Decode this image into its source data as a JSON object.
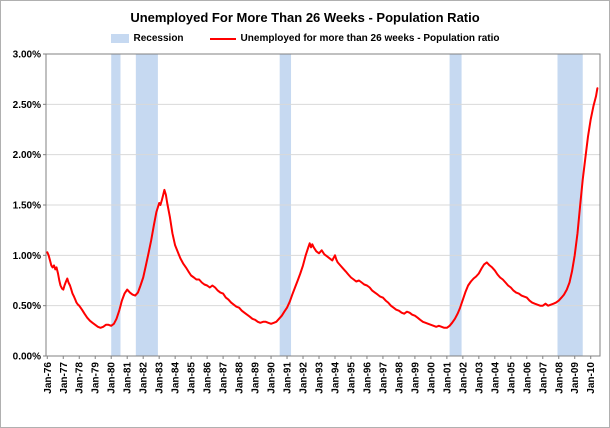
{
  "title": "Unemployed For More Than 26 Weeks - Population Ratio",
  "legend": {
    "recession_label": "Recession",
    "series_label": "Unemployed for more than 26 weeks - Population ratio"
  },
  "chart_data": {
    "type": "line",
    "title": "Unemployed For More Than 26 Weeks - Population Ratio",
    "xlabel": "",
    "ylabel": "",
    "ylim": [
      0,
      3.0
    ],
    "ytick_step": 0.5,
    "ytick_labels": [
      "0.00%",
      "0.50%",
      "1.00%",
      "1.50%",
      "2.00%",
      "2.50%",
      "3.00%"
    ],
    "xlim": [
      1975.92,
      2010.58
    ],
    "x_ticks_years": [
      1976,
      1977,
      1978,
      1979,
      1980,
      1981,
      1982,
      1983,
      1984,
      1985,
      1986,
      1987,
      1988,
      1989,
      1990,
      1991,
      1992,
      1993,
      1994,
      1995,
      1996,
      1997,
      1998,
      1999,
      2000,
      2001,
      2002,
      2003,
      2004,
      2005,
      2006,
      2007,
      2008,
      2009,
      2010
    ],
    "xtick_labels": [
      "Jan-76",
      "Jan-77",
      "Jan-78",
      "Jan-79",
      "Jan-80",
      "Jan-81",
      "Jan-82",
      "Jan-83",
      "Jan-84",
      "Jan-85",
      "Jan-86",
      "Jan-87",
      "Jan-88",
      "Jan-89",
      "Jan-90",
      "Jan-91",
      "Jan-92",
      "Jan-93",
      "Jan-94",
      "Jan-95",
      "Jan-96",
      "Jan-97",
      "Jan-98",
      "Jan-99",
      "Jan-00",
      "Jan-01",
      "Jan-02",
      "Jan-03",
      "Jan-04",
      "Jan-05",
      "Jan-06",
      "Jan-07",
      "Jan-08",
      "Jan-09",
      "Jan-10"
    ],
    "recessions": [
      [
        1980.0,
        1980.58
      ],
      [
        1981.54,
        1982.92
      ],
      [
        1990.54,
        1991.25
      ],
      [
        2001.17,
        2001.92
      ],
      [
        2007.92,
        2009.5
      ]
    ],
    "band_color": "#C6D9F1",
    "grid_color": "#D9D9D9",
    "axis_color": "#808080",
    "series": [
      {
        "name": "Unemployed for more than 26 weeks - Population ratio",
        "color": "#FF0000",
        "points": [
          [
            1976.0,
            1.03
          ],
          [
            1976.08,
            1.0
          ],
          [
            1976.17,
            0.95
          ],
          [
            1976.25,
            0.9
          ],
          [
            1976.33,
            0.88
          ],
          [
            1976.42,
            0.9
          ],
          [
            1976.5,
            0.86
          ],
          [
            1976.58,
            0.88
          ],
          [
            1976.67,
            0.82
          ],
          [
            1976.75,
            0.75
          ],
          [
            1976.83,
            0.7
          ],
          [
            1976.92,
            0.67
          ],
          [
            1977.0,
            0.66
          ],
          [
            1977.08,
            0.7
          ],
          [
            1977.17,
            0.74
          ],
          [
            1977.25,
            0.77
          ],
          [
            1977.33,
            0.73
          ],
          [
            1977.42,
            0.7
          ],
          [
            1977.5,
            0.66
          ],
          [
            1977.58,
            0.62
          ],
          [
            1977.67,
            0.59
          ],
          [
            1977.75,
            0.56
          ],
          [
            1977.83,
            0.53
          ],
          [
            1977.92,
            0.51
          ],
          [
            1978.0,
            0.5
          ],
          [
            1978.17,
            0.46
          ],
          [
            1978.33,
            0.42
          ],
          [
            1978.5,
            0.38
          ],
          [
            1978.67,
            0.35
          ],
          [
            1978.83,
            0.33
          ],
          [
            1979.0,
            0.31
          ],
          [
            1979.17,
            0.29
          ],
          [
            1979.33,
            0.28
          ],
          [
            1979.5,
            0.29
          ],
          [
            1979.67,
            0.31
          ],
          [
            1979.83,
            0.31
          ],
          [
            1980.0,
            0.3
          ],
          [
            1980.17,
            0.32
          ],
          [
            1980.33,
            0.37
          ],
          [
            1980.5,
            0.45
          ],
          [
            1980.67,
            0.55
          ],
          [
            1980.83,
            0.62
          ],
          [
            1981.0,
            0.66
          ],
          [
            1981.17,
            0.63
          ],
          [
            1981.33,
            0.61
          ],
          [
            1981.5,
            0.6
          ],
          [
            1981.67,
            0.63
          ],
          [
            1981.83,
            0.7
          ],
          [
            1982.0,
            0.78
          ],
          [
            1982.17,
            0.9
          ],
          [
            1982.33,
            1.02
          ],
          [
            1982.5,
            1.15
          ],
          [
            1982.67,
            1.3
          ],
          [
            1982.83,
            1.43
          ],
          [
            1983.0,
            1.52
          ],
          [
            1983.08,
            1.5
          ],
          [
            1983.17,
            1.55
          ],
          [
            1983.25,
            1.6
          ],
          [
            1983.33,
            1.65
          ],
          [
            1983.42,
            1.6
          ],
          [
            1983.5,
            1.52
          ],
          [
            1983.67,
            1.38
          ],
          [
            1983.83,
            1.22
          ],
          [
            1984.0,
            1.1
          ],
          [
            1984.17,
            1.03
          ],
          [
            1984.33,
            0.97
          ],
          [
            1984.5,
            0.92
          ],
          [
            1984.67,
            0.88
          ],
          [
            1984.83,
            0.84
          ],
          [
            1985.0,
            0.8
          ],
          [
            1985.17,
            0.78
          ],
          [
            1985.33,
            0.76
          ],
          [
            1985.5,
            0.76
          ],
          [
            1985.67,
            0.73
          ],
          [
            1985.83,
            0.71
          ],
          [
            1986.0,
            0.7
          ],
          [
            1986.17,
            0.68
          ],
          [
            1986.33,
            0.7
          ],
          [
            1986.5,
            0.68
          ],
          [
            1986.67,
            0.65
          ],
          [
            1986.83,
            0.63
          ],
          [
            1987.0,
            0.62
          ],
          [
            1987.17,
            0.58
          ],
          [
            1987.33,
            0.56
          ],
          [
            1987.5,
            0.53
          ],
          [
            1987.67,
            0.51
          ],
          [
            1987.83,
            0.49
          ],
          [
            1988.0,
            0.48
          ],
          [
            1988.17,
            0.45
          ],
          [
            1988.33,
            0.43
          ],
          [
            1988.5,
            0.41
          ],
          [
            1988.67,
            0.39
          ],
          [
            1988.83,
            0.37
          ],
          [
            1989.0,
            0.36
          ],
          [
            1989.17,
            0.34
          ],
          [
            1989.33,
            0.33
          ],
          [
            1989.5,
            0.34
          ],
          [
            1989.67,
            0.34
          ],
          [
            1989.83,
            0.33
          ],
          [
            1990.0,
            0.32
          ],
          [
            1990.17,
            0.33
          ],
          [
            1990.33,
            0.34
          ],
          [
            1990.5,
            0.37
          ],
          [
            1990.67,
            0.4
          ],
          [
            1990.83,
            0.44
          ],
          [
            1991.0,
            0.48
          ],
          [
            1991.17,
            0.54
          ],
          [
            1991.33,
            0.61
          ],
          [
            1991.5,
            0.68
          ],
          [
            1991.67,
            0.75
          ],
          [
            1991.83,
            0.82
          ],
          [
            1992.0,
            0.9
          ],
          [
            1992.17,
            1.0
          ],
          [
            1992.33,
            1.08
          ],
          [
            1992.42,
            1.12
          ],
          [
            1992.5,
            1.08
          ],
          [
            1992.58,
            1.11
          ],
          [
            1992.67,
            1.08
          ],
          [
            1992.83,
            1.04
          ],
          [
            1993.0,
            1.02
          ],
          [
            1993.17,
            1.05
          ],
          [
            1993.33,
            1.01
          ],
          [
            1993.5,
            0.99
          ],
          [
            1993.67,
            0.97
          ],
          [
            1993.83,
            0.95
          ],
          [
            1994.0,
            1.0
          ],
          [
            1994.08,
            0.96
          ],
          [
            1994.17,
            0.93
          ],
          [
            1994.33,
            0.9
          ],
          [
            1994.5,
            0.87
          ],
          [
            1994.67,
            0.84
          ],
          [
            1994.83,
            0.81
          ],
          [
            1995.0,
            0.78
          ],
          [
            1995.17,
            0.76
          ],
          [
            1995.33,
            0.74
          ],
          [
            1995.5,
            0.75
          ],
          [
            1995.67,
            0.73
          ],
          [
            1995.83,
            0.71
          ],
          [
            1996.0,
            0.7
          ],
          [
            1996.17,
            0.68
          ],
          [
            1996.33,
            0.65
          ],
          [
            1996.5,
            0.63
          ],
          [
            1996.67,
            0.61
          ],
          [
            1996.83,
            0.59
          ],
          [
            1997.0,
            0.58
          ],
          [
            1997.17,
            0.55
          ],
          [
            1997.33,
            0.53
          ],
          [
            1997.5,
            0.5
          ],
          [
            1997.67,
            0.48
          ],
          [
            1997.83,
            0.46
          ],
          [
            1998.0,
            0.45
          ],
          [
            1998.17,
            0.43
          ],
          [
            1998.33,
            0.42
          ],
          [
            1998.5,
            0.44
          ],
          [
            1998.67,
            0.43
          ],
          [
            1998.83,
            0.41
          ],
          [
            1999.0,
            0.4
          ],
          [
            1999.17,
            0.38
          ],
          [
            1999.33,
            0.36
          ],
          [
            1999.5,
            0.34
          ],
          [
            1999.67,
            0.33
          ],
          [
            1999.83,
            0.32
          ],
          [
            2000.0,
            0.31
          ],
          [
            2000.17,
            0.3
          ],
          [
            2000.33,
            0.29
          ],
          [
            2000.5,
            0.3
          ],
          [
            2000.67,
            0.29
          ],
          [
            2000.83,
            0.28
          ],
          [
            2001.0,
            0.28
          ],
          [
            2001.17,
            0.3
          ],
          [
            2001.33,
            0.33
          ],
          [
            2001.5,
            0.37
          ],
          [
            2001.67,
            0.42
          ],
          [
            2001.83,
            0.48
          ],
          [
            2002.0,
            0.56
          ],
          [
            2002.17,
            0.64
          ],
          [
            2002.33,
            0.7
          ],
          [
            2002.5,
            0.74
          ],
          [
            2002.67,
            0.77
          ],
          [
            2002.83,
            0.79
          ],
          [
            2003.0,
            0.82
          ],
          [
            2003.17,
            0.87
          ],
          [
            2003.33,
            0.91
          ],
          [
            2003.5,
            0.93
          ],
          [
            2003.67,
            0.9
          ],
          [
            2003.83,
            0.88
          ],
          [
            2004.0,
            0.85
          ],
          [
            2004.17,
            0.81
          ],
          [
            2004.33,
            0.78
          ],
          [
            2004.5,
            0.76
          ],
          [
            2004.67,
            0.73
          ],
          [
            2004.83,
            0.7
          ],
          [
            2005.0,
            0.68
          ],
          [
            2005.17,
            0.65
          ],
          [
            2005.33,
            0.63
          ],
          [
            2005.5,
            0.62
          ],
          [
            2005.67,
            0.6
          ],
          [
            2005.83,
            0.59
          ],
          [
            2006.0,
            0.58
          ],
          [
            2006.17,
            0.55
          ],
          [
            2006.33,
            0.53
          ],
          [
            2006.5,
            0.52
          ],
          [
            2006.67,
            0.51
          ],
          [
            2006.83,
            0.5
          ],
          [
            2007.0,
            0.5
          ],
          [
            2007.17,
            0.52
          ],
          [
            2007.33,
            0.5
          ],
          [
            2007.5,
            0.51
          ],
          [
            2007.67,
            0.52
          ],
          [
            2007.83,
            0.53
          ],
          [
            2008.0,
            0.55
          ],
          [
            2008.17,
            0.58
          ],
          [
            2008.33,
            0.61
          ],
          [
            2008.5,
            0.66
          ],
          [
            2008.67,
            0.73
          ],
          [
            2008.83,
            0.84
          ],
          [
            2009.0,
            1.0
          ],
          [
            2009.17,
            1.22
          ],
          [
            2009.33,
            1.48
          ],
          [
            2009.5,
            1.75
          ],
          [
            2009.67,
            1.98
          ],
          [
            2009.83,
            2.18
          ],
          [
            2010.0,
            2.35
          ],
          [
            2010.17,
            2.48
          ],
          [
            2010.33,
            2.58
          ],
          [
            2010.42,
            2.66
          ]
        ]
      }
    ]
  }
}
